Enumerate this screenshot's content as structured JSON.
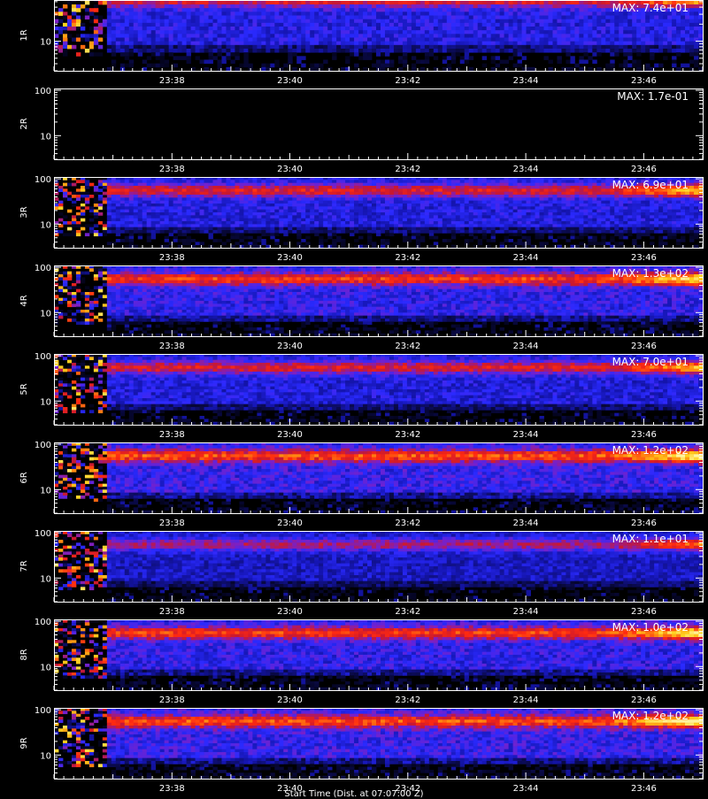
{
  "colors": {
    "background": "#000000",
    "axis": "#ffffff",
    "text": "#ffffff"
  },
  "chart_data": {
    "type": "heatmap",
    "x_ticks": [
      "23:38",
      "23:40",
      "23:42",
      "23:44",
      "23:46"
    ],
    "x_range": [
      "23:36:00",
      "23:47:00"
    ],
    "y_scale": "log",
    "y_range": [
      3,
      110
    ],
    "y_ticks": [
      "100",
      "10"
    ],
    "colormap": [
      "#000000",
      "#0a0a4a",
      "#1515b0",
      "#2a2aff",
      "#7a20c8",
      "#c81830",
      "#ff2a10",
      "#ff8a10",
      "#ffd21e",
      "#fff4a0"
    ],
    "panels": [
      {
        "ylabel": "1R",
        "max_text": "MAX: 7.4e+01",
        "max": 74,
        "intensity": 0.6
      },
      {
        "ylabel": "2R",
        "max_text": "MAX: 1.7e-01",
        "max": 0.17,
        "intensity": 0.0
      },
      {
        "ylabel": "3R",
        "max_text": "MAX: 6.9e+01",
        "max": 69,
        "intensity": 0.57
      },
      {
        "ylabel": "4R",
        "max_text": "MAX: 1.3e+02",
        "max": 130,
        "intensity": 0.72
      },
      {
        "ylabel": "5R",
        "max_text": "MAX: 7.0e+01",
        "max": 70,
        "intensity": 0.55
      },
      {
        "ylabel": "6R",
        "max_text": "MAX: 1.2e+02",
        "max": 120,
        "intensity": 0.78
      },
      {
        "ylabel": "7R",
        "max_text": "MAX: 1.1e+01",
        "max": 11,
        "intensity": 0.38
      },
      {
        "ylabel": "8R",
        "max_text": "MAX: 1.0e+02",
        "max": 100,
        "intensity": 0.72
      },
      {
        "ylabel": "9R",
        "max_text": "MAX: 1.2e+02",
        "max": 120,
        "intensity": 0.78
      }
    ]
  },
  "footer": {
    "text": "Start Time (Dist. at 07:07:00 Z)"
  }
}
